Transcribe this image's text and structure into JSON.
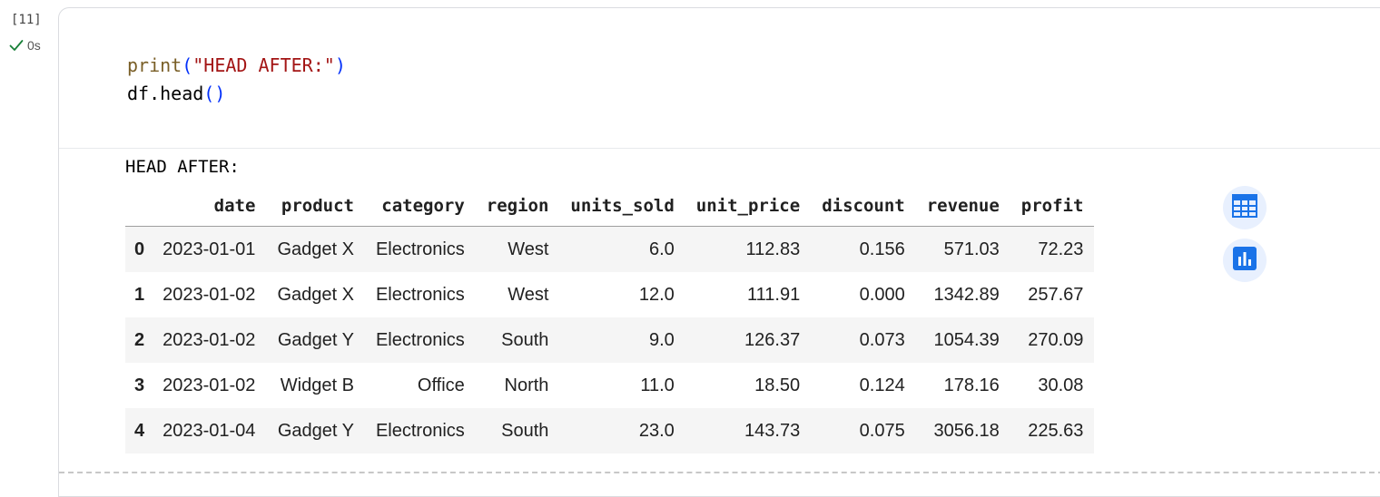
{
  "cell": {
    "execution_count": "[11]",
    "status_icon": "check-icon",
    "run_time": "0s",
    "code": {
      "line1": {
        "fn": "print",
        "open": "(",
        "string": "\"HEAD AFTER:\"",
        "close": ")"
      },
      "line2": {
        "prefix": "df.head",
        "open": "(",
        "close": ")"
      }
    }
  },
  "output": {
    "printed": "HEAD AFTER:",
    "table": {
      "columns": [
        "date",
        "product",
        "category",
        "region",
        "units_sold",
        "unit_price",
        "discount",
        "revenue",
        "profit"
      ],
      "rows": [
        {
          "index": "0",
          "cells": [
            "2023-01-01",
            "Gadget X",
            "Electronics",
            "West",
            "6.0",
            "112.83",
            "0.156",
            "571.03",
            "72.23"
          ]
        },
        {
          "index": "1",
          "cells": [
            "2023-01-02",
            "Gadget X",
            "Electronics",
            "West",
            "12.0",
            "111.91",
            "0.000",
            "1342.89",
            "257.67"
          ]
        },
        {
          "index": "2",
          "cells": [
            "2023-01-02",
            "Gadget Y",
            "Electronics",
            "South",
            "9.0",
            "126.37",
            "0.073",
            "1054.39",
            "270.09"
          ]
        },
        {
          "index": "3",
          "cells": [
            "2023-01-02",
            "Widget B",
            "Office",
            "North",
            "11.0",
            "18.50",
            "0.124",
            "178.16",
            "30.08"
          ]
        },
        {
          "index": "4",
          "cells": [
            "2023-01-04",
            "Gadget Y",
            "Electronics",
            "South",
            "23.0",
            "143.73",
            "0.075",
            "3056.18",
            "225.63"
          ]
        }
      ]
    },
    "actions": [
      {
        "icon": "table-icon"
      },
      {
        "icon": "bar-chart-icon"
      }
    ]
  },
  "colors": {
    "accent": "#1a73e8",
    "check": "#188038",
    "string": "#a31515",
    "function": "#795e26",
    "paren": "#0431fa"
  }
}
